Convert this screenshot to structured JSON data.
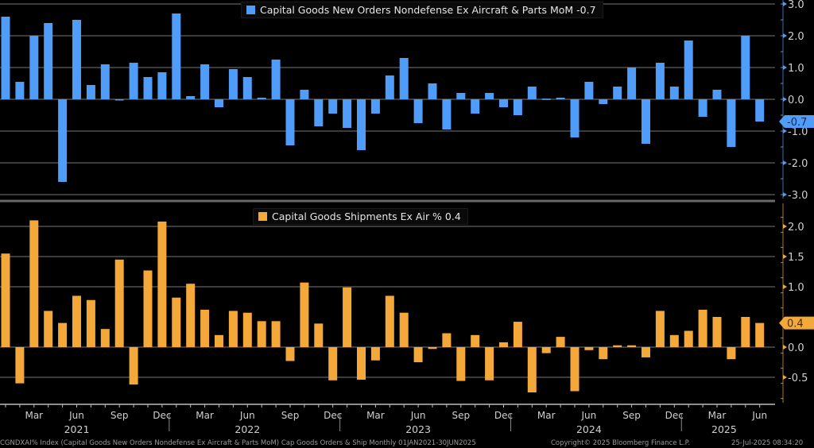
{
  "chart_data": [
    {
      "type": "bar",
      "title": "Capital Goods New Orders Nondefense Ex Aircraft & Parts MoM",
      "legend_label": "Capital Goods New Orders Nondefense Ex Aircraft & Parts MoM  -0.7",
      "last_value_label": "-0.7",
      "color": "#4f9df8",
      "ylim": [
        -3.0,
        3.0
      ],
      "yticks": [
        "3.0",
        "2.0",
        "1.0",
        "0.0",
        "-1.0",
        "-2.0",
        "-3.0"
      ],
      "ytick_values": [
        3,
        2,
        1,
        0,
        -1,
        -2,
        -3
      ],
      "grid": true,
      "legend_position": "top-center",
      "values": [
        2.6,
        0.55,
        2.0,
        2.4,
        -2.6,
        2.5,
        0.45,
        1.1,
        0.0,
        1.15,
        0.7,
        0.85,
        2.7,
        0.1,
        1.1,
        -0.25,
        0.95,
        0.7,
        0.05,
        1.25,
        -1.45,
        0.3,
        -0.85,
        -0.45,
        -0.9,
        -1.6,
        -0.45,
        0.75,
        1.3,
        -0.75,
        0.5,
        -0.95,
        0.2,
        -0.45,
        0.2,
        -0.25,
        -0.5,
        0.4,
        0.02,
        0.05,
        -1.2,
        0.55,
        -0.15,
        0.4,
        1.0,
        -1.4,
        1.15,
        0.4,
        1.85,
        -0.55,
        0.3,
        -1.5,
        2.0,
        -0.7
      ]
    },
    {
      "type": "bar",
      "title": "Capital Goods Shipments Ex Air %",
      "legend_label": "Capital Goods Shipments Ex Air %  0.4",
      "last_value_label": "0.4",
      "color": "#f5a83a",
      "ylim": [
        -0.85,
        2.35
      ],
      "yticks": [
        "2.0",
        "1.5",
        "1.0",
        "0.0",
        "-0.5"
      ],
      "ytick_values": [
        2.0,
        1.5,
        1.0,
        0.0,
        -0.5
      ],
      "grid": true,
      "legend_position": "top-center",
      "values": [
        1.55,
        -0.6,
        2.1,
        0.6,
        0.4,
        0.85,
        0.78,
        0.3,
        1.45,
        -0.62,
        1.27,
        2.08,
        0.82,
        1.05,
        0.62,
        0.2,
        0.6,
        0.57,
        0.43,
        0.43,
        -0.23,
        1.07,
        0.39,
        -0.55,
        0.99,
        -0.54,
        -0.22,
        0.85,
        0.57,
        -0.25,
        -0.03,
        0.23,
        -0.56,
        0.2,
        -0.55,
        0.08,
        0.42,
        -0.75,
        -0.1,
        0.17,
        -0.73,
        -0.05,
        -0.2,
        0.03,
        0.03,
        -0.17,
        0.6,
        0.2,
        0.27,
        0.62,
        0.5,
        -0.2,
        0.5,
        0.4
      ]
    }
  ],
  "x_axis": {
    "start": "Jan 2021",
    "end": "Jun 2025",
    "month_labels": [
      "Mar",
      "Jun",
      "Sep",
      "Dec",
      "Mar",
      "Jun",
      "Sep",
      "Dec",
      "Mar",
      "Jun",
      "Sep",
      "Dec",
      "Mar",
      "Jun",
      "Sep",
      "Dec",
      "Mar",
      "Jun"
    ],
    "month_label_indices": [
      2,
      5,
      8,
      11,
      14,
      17,
      20,
      23,
      26,
      29,
      32,
      35,
      38,
      41,
      44,
      47,
      50,
      53
    ],
    "year_labels": [
      "2021",
      "2022",
      "2023",
      "2024",
      "2025"
    ],
    "year_label_indices": [
      5,
      17,
      29,
      41,
      50.5
    ]
  },
  "footer": {
    "source": "CGNDXAI% Index (Capital Goods New Orders Nondefense Ex Aircraft & Parts MoM) Cap Goods Orders & Ship  Monthly 01JAN2021-30JUN2025",
    "copyright": "Copyright© 2025 Bloomberg Finance L.P.",
    "timestamp": "25-Jul-2025 08:34:20"
  }
}
